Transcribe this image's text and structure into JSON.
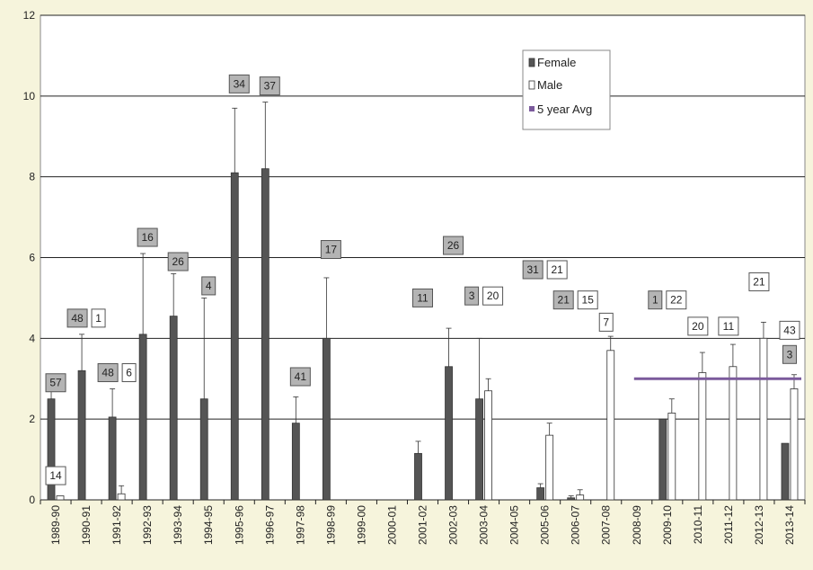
{
  "chart_data": {
    "type": "bar",
    "title": "",
    "xlabel": "",
    "ylabel": "",
    "ylim": [
      0,
      12
    ],
    "yticks": [
      0,
      2,
      4,
      6,
      8,
      10,
      12
    ],
    "grid": true,
    "legend_position": "top-center",
    "categories": [
      "1989-90",
      "1990-91",
      "1991-92",
      "1992-93",
      "1993-94",
      "1994-95",
      "1995-96",
      "1996-97",
      "1997-98",
      "1998-99",
      "1999-00",
      "2000-01",
      "2001-02",
      "2002-03",
      "2003-04",
      "2004-05",
      "2005-06",
      "2006-07",
      "2007-08",
      "2008-09",
      "2009-10",
      "2010-11",
      "2011-12",
      "2012-13",
      "2013-14"
    ],
    "series": [
      {
        "name": "Female",
        "color": "#555555",
        "values": [
          2.5,
          3.2,
          2.05,
          4.1,
          4.55,
          2.5,
          8.1,
          8.2,
          1.9,
          4.0,
          null,
          null,
          1.15,
          3.3,
          2.5,
          null,
          0.3,
          0.05,
          null,
          null,
          2.0,
          null,
          null,
          null,
          1.4
        ],
        "error_upper": [
          2.7,
          4.1,
          2.75,
          6.1,
          5.6,
          5.0,
          9.7,
          9.85,
          2.55,
          5.5,
          null,
          null,
          1.45,
          4.25,
          4.0,
          null,
          0.4,
          0.1,
          null,
          null,
          null,
          null,
          null,
          null,
          null
        ]
      },
      {
        "name": "Male",
        "color": "#ffffff",
        "values": [
          0.1,
          null,
          0.15,
          null,
          null,
          null,
          null,
          null,
          null,
          null,
          null,
          null,
          null,
          null,
          2.7,
          null,
          1.6,
          0.12,
          3.7,
          null,
          2.15,
          3.15,
          3.3,
          4.0,
          2.75
        ],
        "error_upper": [
          null,
          null,
          0.35,
          null,
          null,
          null,
          null,
          null,
          null,
          null,
          null,
          null,
          null,
          null,
          3.0,
          null,
          1.9,
          0.25,
          4.05,
          null,
          2.5,
          3.65,
          3.85,
          4.4,
          3.1
        ]
      },
      {
        "name": "5 year Avg",
        "color": "#7b5a9c",
        "type": "line",
        "value": 3.0,
        "x_from": "2009-10",
        "x_to": "2013-14"
      }
    ],
    "annotations": [
      {
        "text": "57",
        "style": "grey",
        "category": "1989-90",
        "y": 2.9
      },
      {
        "text": "14",
        "style": "white",
        "category": "1989-90",
        "y": 0.6
      },
      {
        "text": "48",
        "style": "grey",
        "category": "1990-91",
        "y": 4.5
      },
      {
        "text": "1",
        "style": "white",
        "category": "1990-91",
        "y": 4.5
      },
      {
        "text": "48",
        "style": "grey",
        "category": "1991-92",
        "y": 3.15
      },
      {
        "text": "6",
        "style": "white",
        "category": "1991-92",
        "y": 3.15
      },
      {
        "text": "16",
        "style": "grey",
        "category": "1992-93",
        "y": 6.5
      },
      {
        "text": "26",
        "style": "grey",
        "category": "1993-94",
        "y": 5.9
      },
      {
        "text": "4",
        "style": "grey",
        "category": "1994-95",
        "y": 5.3
      },
      {
        "text": "34",
        "style": "grey",
        "category": "1995-96",
        "y": 10.3
      },
      {
        "text": "37",
        "style": "grey",
        "category": "1996-97",
        "y": 10.25
      },
      {
        "text": "41",
        "style": "grey",
        "category": "1997-98",
        "y": 3.05
      },
      {
        "text": "17",
        "style": "grey",
        "category": "1998-99",
        "y": 6.2
      },
      {
        "text": "11",
        "style": "grey",
        "category": "2001-02",
        "y": 5.0
      },
      {
        "text": "26",
        "style": "grey",
        "category": "2002-03",
        "y": 6.3
      },
      {
        "text": "3",
        "style": "grey",
        "category": "2003-04",
        "y": 5.05
      },
      {
        "text": "20",
        "style": "white",
        "category": "2003-04",
        "y": 5.05
      },
      {
        "text": "31",
        "style": "grey",
        "category": "2005-06",
        "y": 5.7
      },
      {
        "text": "21",
        "style": "white",
        "category": "2005-06",
        "y": 5.7
      },
      {
        "text": "21",
        "style": "grey",
        "category": "2006-07",
        "y": 4.95
      },
      {
        "text": "15",
        "style": "white",
        "category": "2006-07",
        "y": 4.95
      },
      {
        "text": "7",
        "style": "white",
        "category": "2007-08",
        "y": 4.4
      },
      {
        "text": "1",
        "style": "grey",
        "category": "2009-10",
        "y": 4.95
      },
      {
        "text": "22",
        "style": "white",
        "category": "2009-10",
        "y": 4.95
      },
      {
        "text": "20",
        "style": "white",
        "category": "2010-11",
        "y": 4.3
      },
      {
        "text": "11",
        "style": "white",
        "category": "2011-12",
        "y": 4.3
      },
      {
        "text": "21",
        "style": "white",
        "category": "2012-13",
        "y": 5.4
      },
      {
        "text": "43",
        "style": "white",
        "category": "2013-14",
        "y": 4.2
      },
      {
        "text": "3",
        "style": "grey",
        "category": "2013-14",
        "y": 3.6
      }
    ]
  }
}
